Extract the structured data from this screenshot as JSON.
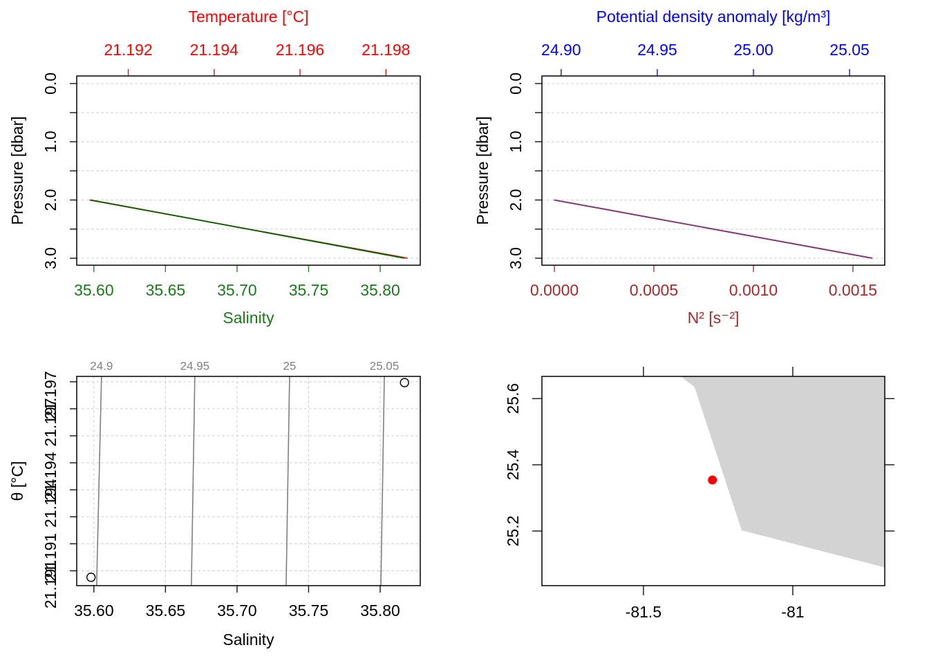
{
  "chart_data": [
    {
      "type": "profile",
      "y_label": "Pressure [dbar]",
      "y_reversed": true,
      "ylim": [
        -0.13,
        3.12
      ],
      "yticks": [
        {
          "value": 0,
          "label": "0.0"
        },
        {
          "value": 1,
          "label": "1.0"
        },
        {
          "value": 2,
          "label": "2.0"
        },
        {
          "value": 3,
          "label": "3.0"
        }
      ],
      "yminor": [
        0.5,
        1.5,
        2.5
      ],
      "grid": true,
      "y": [
        2,
        3
      ],
      "x_axes": [
        {
          "side": "top",
          "title": "Temperature [°C]",
          "color": "#ff0000",
          "line_color": "#ff0000",
          "xlim": [
            21.1908,
            21.1988
          ],
          "xticks": [
            21.192,
            21.194,
            21.196,
            21.198
          ],
          "values": [
            21.1911,
            21.1985
          ]
        },
        {
          "side": "bottom",
          "title": "Salinity",
          "color": "#1a7a1a",
          "line_color": "#006400",
          "xlim": [
            35.588,
            35.828
          ],
          "xticks": [
            {
              "value": 35.6,
              "label": "35.60"
            },
            {
              "value": 35.65,
              "label": "35.65"
            },
            {
              "value": 35.7,
              "label": "35.70"
            },
            {
              "value": 35.75,
              "label": "35.75"
            },
            {
              "value": 35.8,
              "label": "35.80"
            }
          ],
          "values": [
            35.598,
            35.817
          ]
        }
      ]
    },
    {
      "type": "profile",
      "y_label": "Pressure [dbar]",
      "y_reversed": true,
      "ylim": [
        -0.13,
        3.12
      ],
      "yticks": [
        {
          "value": 0,
          "label": "0.0"
        },
        {
          "value": 1,
          "label": "1.0"
        },
        {
          "value": 2,
          "label": "2.0"
        },
        {
          "value": 3,
          "label": "3.0"
        }
      ],
      "yminor": [
        0.5,
        1.5,
        2.5
      ],
      "grid": true,
      "y": [
        2,
        3
      ],
      "x_axes": [
        {
          "side": "top",
          "title": "Potential density anomaly [kg/m³]",
          "color": "#0000ff",
          "line_color": "#0000ff",
          "xlim": [
            24.89,
            25.0683
          ],
          "xticks": [
            {
              "value": 24.9,
              "label": "24.90"
            },
            24.95,
            {
              "value": 25.0,
              "label": "25.00"
            },
            25.05
          ],
          "values": [
            24.8964,
            25.0619
          ]
        },
        {
          "side": "bottom",
          "title": "N² [s⁻²]",
          "color": "#a52a2a",
          "line_color": "#8b3a62",
          "xlim": [
            -6.25e-05,
            0.00166
          ],
          "xticks": [
            {
              "value": 0,
              "label": "0.0000"
            },
            0.0005,
            {
              "value": 0.001,
              "label": "0.0010"
            },
            0.0015
          ],
          "values": [
            0,
            0.001597
          ]
        }
      ]
    },
    {
      "type": "ts",
      "x_label": "Salinity",
      "y_label": "θ [°C]",
      "xlim": [
        35.588,
        35.828
      ],
      "xticks": [
        {
          "value": 35.6,
          "label": "35.60"
        },
        {
          "value": 35.65,
          "label": "35.65"
        },
        {
          "value": 35.7,
          "label": "35.70"
        },
        {
          "value": 35.75,
          "label": "35.75"
        },
        {
          "value": 35.8,
          "label": "35.80"
        }
      ],
      "ylim": [
        21.19045,
        21.1982
      ],
      "yticks": [
        {
          "value": 21.1975,
          "label": "21.197"
        },
        {
          "value": 21.1965,
          "label": "21.197"
        },
        {
          "value": 21.1945,
          "label": "21.194"
        },
        {
          "value": 21.1935,
          "label": "21.194"
        },
        {
          "value": 21.1915,
          "label": "21.191"
        },
        {
          "value": 21.1905,
          "label": "21.191"
        }
      ],
      "ygrid": [
        21.191,
        21.192,
        21.193,
        21.194,
        21.195,
        21.196,
        21.197,
        21.198
      ],
      "grid": true,
      "salinity": [
        35.598,
        35.817
      ],
      "theta": [
        21.19076,
        21.19797
      ],
      "contour_levels": [
        24.9,
        24.95,
        25,
        25.05
      ],
      "contour_salinity_top": [
        35.6053,
        35.6705,
        35.7367,
        35.8029
      ],
      "contour_salinity_bottom": [
        35.6019,
        35.6681,
        35.7343,
        35.8005
      ],
      "contour_color": "#808080"
    },
    {
      "type": "map",
      "xlim": [
        -81.84,
        -80.692
      ],
      "ylim": [
        25.035,
        25.667
      ],
      "xticks": [
        -81.5,
        -81
      ],
      "yticks": [
        25.2,
        25.4,
        25.6
      ],
      "land": {
        "lon": [
          -81.375,
          -81.329,
          -81.171,
          -80.692,
          -80.692
        ],
        "lat": [
          25.667,
          25.635,
          25.202,
          25.09,
          25.667
        ]
      },
      "land_color": "#d3d3d3",
      "station": {
        "lon": -81.269,
        "lat": 25.354,
        "color": "#ff0000"
      }
    }
  ]
}
